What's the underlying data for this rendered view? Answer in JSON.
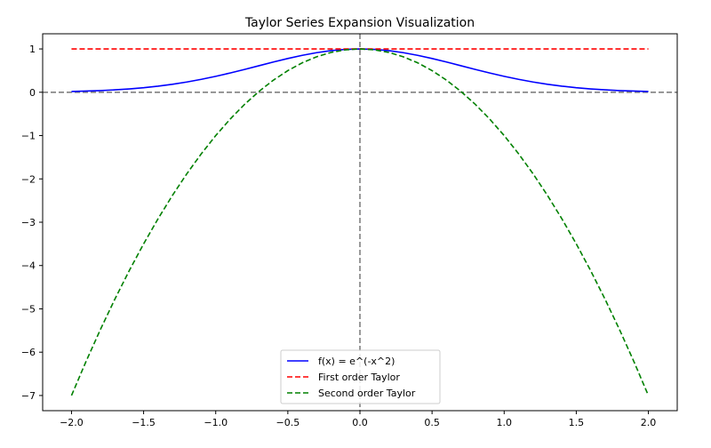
{
  "chart_data": {
    "type": "line",
    "title": "Taylor Series Expansion Visualization",
    "xlabel": "",
    "ylabel": "",
    "xlim": [
      -2.2,
      2.2
    ],
    "ylim": [
      -7.35,
      1.35
    ],
    "x_ticks": [
      -2.0,
      -1.5,
      -1.0,
      -0.5,
      0.0,
      0.5,
      1.0,
      1.5,
      2.0
    ],
    "x_tick_labels": [
      "−2.0",
      "−1.5",
      "−1.0",
      "−0.5",
      "0.0",
      "0.5",
      "1.0",
      "1.5",
      "2.0"
    ],
    "y_ticks": [
      1,
      0,
      -1,
      -2,
      -3,
      -4,
      -5,
      -6,
      -7
    ],
    "y_tick_labels": [
      "1",
      "0",
      "−1",
      "−2",
      "−3",
      "−4",
      "−5",
      "−6",
      "−7"
    ],
    "grid": false,
    "legend_position": "bottom-center",
    "reference_lines": [
      {
        "orientation": "horizontal",
        "value": 0,
        "color": "#808080",
        "style": "dashed"
      },
      {
        "orientation": "vertical",
        "value": 0,
        "color": "#808080",
        "style": "dashed"
      }
    ],
    "x": [
      -2.0,
      -1.9,
      -1.8,
      -1.7,
      -1.6,
      -1.5,
      -1.4,
      -1.3,
      -1.2,
      -1.1,
      -1.0,
      -0.9,
      -0.8,
      -0.7,
      -0.6,
      -0.5,
      -0.4,
      -0.3,
      -0.2,
      -0.1,
      0.0,
      0.1,
      0.2,
      0.3,
      0.4,
      0.5,
      0.6,
      0.7,
      0.8,
      0.9,
      1.0,
      1.1,
      1.2,
      1.3,
      1.4,
      1.5,
      1.6,
      1.7,
      1.8,
      1.9,
      2.0
    ],
    "series": [
      {
        "name": "f(x) = e^(-x^2)",
        "color": "#0000ff",
        "style": "solid",
        "values": [
          0.018,
          0.027,
          0.039,
          0.056,
          0.077,
          0.105,
          0.141,
          0.185,
          0.237,
          0.298,
          0.368,
          0.445,
          0.527,
          0.613,
          0.698,
          0.779,
          0.852,
          0.914,
          0.961,
          0.99,
          1.0,
          0.99,
          0.961,
          0.914,
          0.852,
          0.779,
          0.698,
          0.613,
          0.527,
          0.445,
          0.368,
          0.298,
          0.237,
          0.185,
          0.141,
          0.105,
          0.077,
          0.056,
          0.039,
          0.027,
          0.018
        ]
      },
      {
        "name": "First order Taylor",
        "color": "#ff0000",
        "style": "dashed",
        "values": [
          1.0,
          1.0,
          1.0,
          1.0,
          1.0,
          1.0,
          1.0,
          1.0,
          1.0,
          1.0,
          1.0,
          1.0,
          1.0,
          1.0,
          1.0,
          1.0,
          1.0,
          1.0,
          1.0,
          1.0,
          1.0,
          1.0,
          1.0,
          1.0,
          1.0,
          1.0,
          1.0,
          1.0,
          1.0,
          1.0,
          1.0,
          1.0,
          1.0,
          1.0,
          1.0,
          1.0,
          1.0,
          1.0,
          1.0,
          1.0,
          1.0
        ]
      },
      {
        "name": "Second order Taylor",
        "color": "#008000",
        "style": "dashed",
        "values": [
          -7.0,
          -6.22,
          -5.48,
          -4.78,
          -4.12,
          -3.5,
          -2.92,
          -2.38,
          -1.88,
          -1.42,
          -1.0,
          -0.62,
          -0.28,
          0.02,
          0.28,
          0.5,
          0.68,
          0.82,
          0.92,
          0.98,
          1.0,
          0.98,
          0.92,
          0.82,
          0.68,
          0.5,
          0.28,
          0.02,
          -0.28,
          -0.62,
          -1.0,
          -1.42,
          -1.88,
          -2.38,
          -2.92,
          -3.5,
          -4.12,
          -4.78,
          -5.48,
          -6.22,
          -7.0
        ]
      }
    ]
  }
}
